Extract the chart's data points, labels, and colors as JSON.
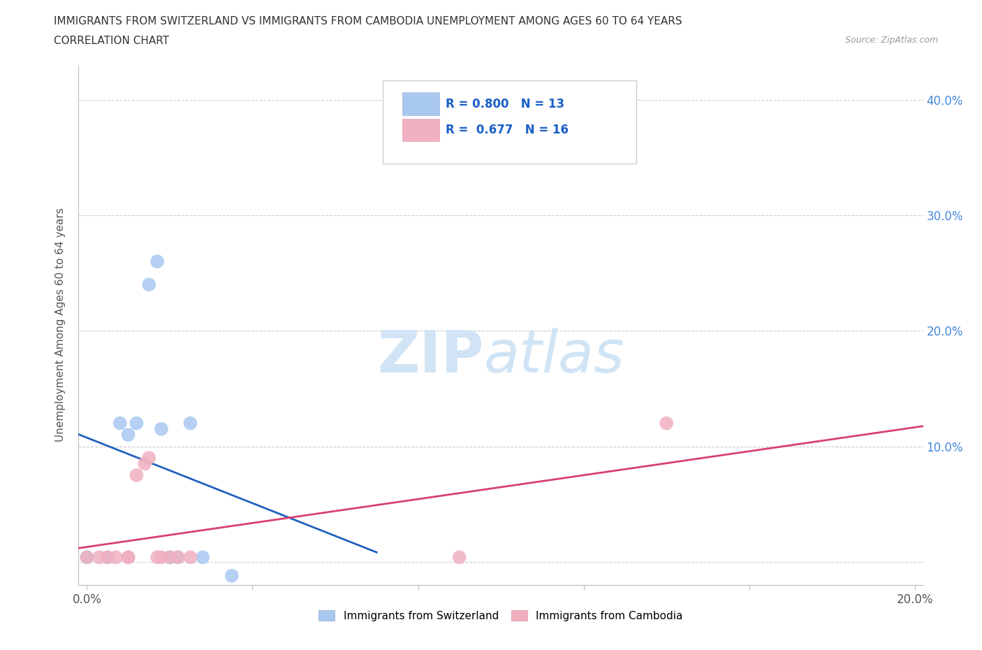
{
  "title_line1": "IMMIGRANTS FROM SWITZERLAND VS IMMIGRANTS FROM CAMBODIA UNEMPLOYMENT AMONG AGES 60 TO 64 YEARS",
  "title_line2": "CORRELATION CHART",
  "source_text": "Source: ZipAtlas.com",
  "ylabel": "Unemployment Among Ages 60 to 64 years",
  "xlim": [
    -0.002,
    0.202
  ],
  "ylim": [
    -0.02,
    0.43
  ],
  "switzerland_color": "#a8c8f0",
  "cambodia_color": "#f0b0c0",
  "trend_switzerland_color": "#2060c0",
  "trend_cambodia_color": "#d84070",
  "switzerland_R": 0.8,
  "switzerland_N": 13,
  "cambodia_R": 0.677,
  "cambodia_N": 16,
  "switzerland_x": [
    0.0,
    0.005,
    0.005,
    0.01,
    0.01,
    0.015,
    0.015,
    0.02,
    0.02,
    0.025,
    0.025,
    0.03,
    0.035
  ],
  "switzerland_y": [
    0.005,
    0.12,
    0.13,
    0.11,
    0.23,
    0.24,
    0.26,
    0.005,
    0.005,
    0.005,
    0.12,
    0.005,
    -0.015
  ],
  "cambodia_x": [
    0.0,
    0.005,
    0.005,
    0.005,
    0.01,
    0.01,
    0.01,
    0.015,
    0.015,
    0.015,
    0.02,
    0.02,
    0.025,
    0.025,
    0.09,
    0.14
  ],
  "cambodia_y": [
    0.005,
    0.005,
    0.005,
    0.005,
    0.005,
    0.005,
    0.005,
    0.07,
    0.08,
    0.09,
    0.005,
    0.005,
    0.005,
    0.005,
    0.005,
    0.12
  ],
  "watermark_color": "#d0e4f5",
  "legend_color": "#1a5fc8"
}
